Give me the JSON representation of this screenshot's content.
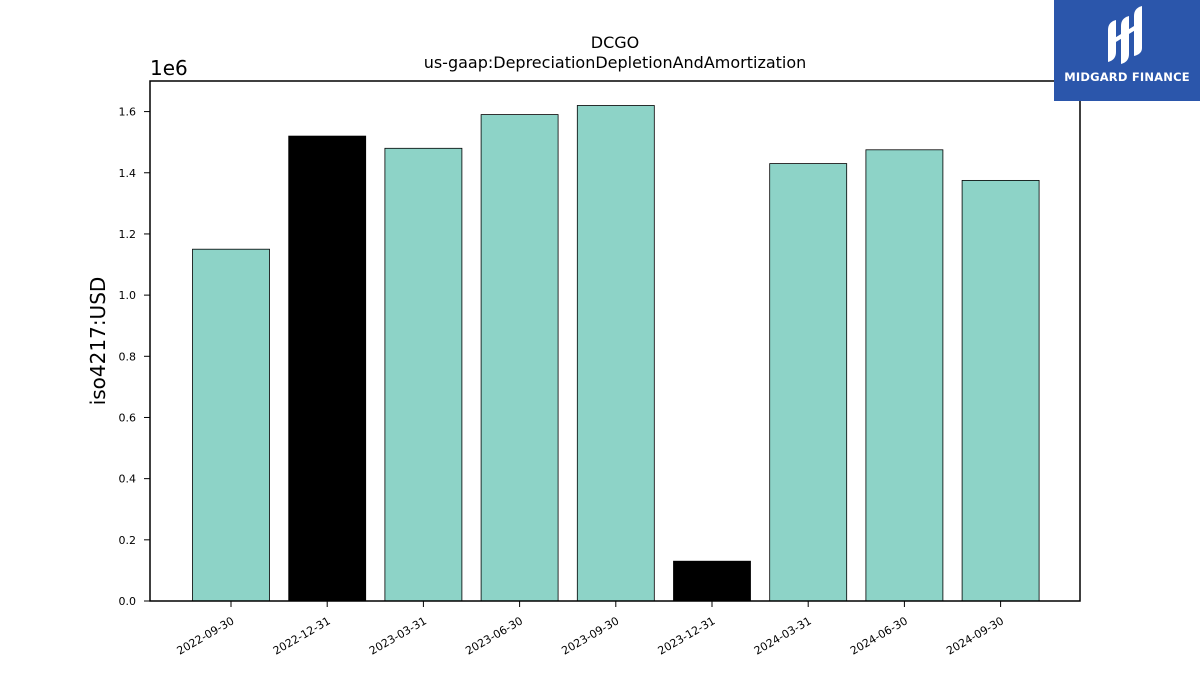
{
  "chart_data": {
    "type": "bar",
    "title": "DCGO",
    "subtitle": "us-gaap:DepreciationDepletionAndAmortization",
    "ylabel": "iso4217:USD",
    "xlabel": "",
    "offset_label": "1e6",
    "ylim": [
      0,
      1.7
    ],
    "yticks": [
      "0.0",
      "0.2",
      "0.4",
      "0.6",
      "0.8",
      "1.0",
      "1.2",
      "1.4",
      "1.6"
    ],
    "categories": [
      "2022-09-30",
      "2022-12-31",
      "2023-03-31",
      "2023-06-30",
      "2023-09-30",
      "2023-12-31",
      "2024-03-31",
      "2024-06-30",
      "2024-09-30"
    ],
    "values": [
      1.15,
      1.52,
      1.48,
      1.59,
      1.62,
      0.13,
      1.43,
      1.475,
      1.375
    ],
    "bar_colors": [
      "#8dd3c7",
      "#000000",
      "#8dd3c7",
      "#8dd3c7",
      "#8dd3c7",
      "#000000",
      "#8dd3c7",
      "#8dd3c7",
      "#8dd3c7"
    ],
    "grid": false,
    "legend": "none"
  },
  "logo": {
    "text": "MIDGARD FINANCE",
    "background": "#2b56ab"
  }
}
